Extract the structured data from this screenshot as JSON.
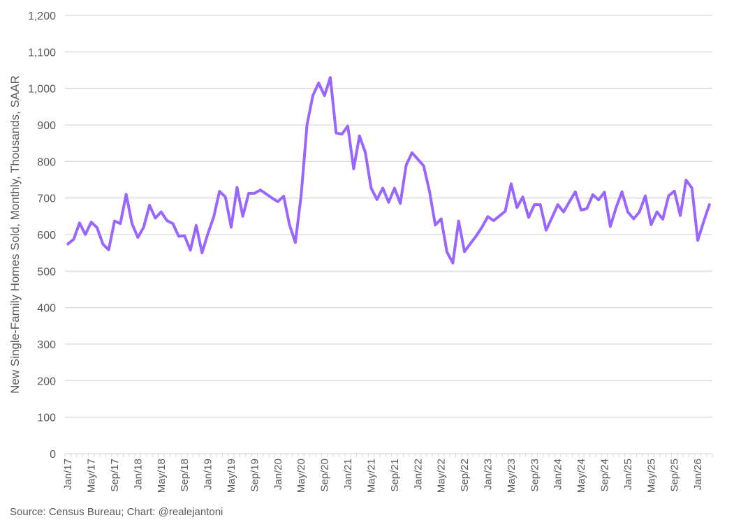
{
  "chart_data": {
    "type": "line",
    "title": "",
    "ylabel": "New Single-Family Homes Sold, Monthly, Thousands, SAAR",
    "xlabel": "",
    "ylim": [
      0,
      1200
    ],
    "grid": true,
    "legend": "none",
    "y_ticks": [
      "0",
      "100",
      "200",
      "300",
      "400",
      "500",
      "600",
      "700",
      "800",
      "900",
      "1,000",
      "1,100",
      "1,200"
    ],
    "x_tick_labels": [
      "Jan/17",
      "May/17",
      "Sep/17",
      "Jan/18",
      "May/18",
      "Sep/18",
      "Jan/19",
      "May/19",
      "Sep/19",
      "Jan/20",
      "May/20",
      "Sep/20",
      "Jan/21",
      "May/21",
      "Sep/21",
      "Jan/22",
      "May/22",
      "Sep/22",
      "Jan/23",
      "May/23",
      "Sep/23",
      "Jan/24",
      "May/24",
      "Sep/24",
      "Jan/25",
      "May/25",
      "Sep/25",
      "Jan/26"
    ],
    "x_start": "Jan/17",
    "x_end": "Mar/26",
    "series": [
      {
        "color": "#9966ff",
        "x": [
          "Jan/17",
          "Feb/17",
          "Mar/17",
          "Apr/17",
          "May/17",
          "Jun/17",
          "Jul/17",
          "Aug/17",
          "Sep/17",
          "Oct/17",
          "Nov/17",
          "Dec/17",
          "Jan/18",
          "Feb/18",
          "Mar/18",
          "Apr/18",
          "May/18",
          "Jun/18",
          "Jul/18",
          "Aug/18",
          "Sep/18",
          "Oct/18",
          "Nov/18",
          "Dec/18",
          "Jan/19",
          "Feb/19",
          "Mar/19",
          "Apr/19",
          "May/19",
          "Jun/19",
          "Jul/19",
          "Aug/19",
          "Sep/19",
          "Oct/19",
          "Nov/19",
          "Dec/19",
          "Jan/20",
          "Feb/20",
          "Mar/20",
          "Apr/20",
          "May/20",
          "Jun/20",
          "Jul/20",
          "Aug/20",
          "Sep/20",
          "Oct/20",
          "Nov/20",
          "Dec/20",
          "Jan/21",
          "Feb/21",
          "Mar/21",
          "Apr/21",
          "May/21",
          "Jun/21",
          "Jul/21",
          "Aug/21",
          "Sep/21",
          "Oct/21",
          "Nov/21",
          "Dec/21",
          "Jan/22",
          "Feb/22",
          "Mar/22",
          "Apr/22",
          "May/22",
          "Jun/22",
          "Jul/22",
          "Aug/22",
          "Sep/22",
          "Oct/22",
          "Nov/22",
          "Dec/22",
          "Jan/23",
          "Feb/23",
          "Mar/23",
          "Apr/23",
          "May/23",
          "Jun/23",
          "Jul/23",
          "Aug/23",
          "Sep/23",
          "Oct/23",
          "Nov/23",
          "Dec/23",
          "Jan/24",
          "Feb/24",
          "Mar/24",
          "Apr/24",
          "May/24",
          "Jun/24",
          "Jul/24",
          "Aug/24",
          "Sep/24",
          "Oct/24",
          "Nov/24",
          "Dec/24",
          "Jan/25",
          "Feb/25",
          "Mar/25",
          "Apr/25",
          "May/25",
          "Jun/25",
          "Jul/25",
          "Aug/25",
          "Sep/25",
          "Oct/25",
          "Nov/25",
          "Dec/25",
          "Jan/26",
          "Feb/26",
          "Mar/26"
        ],
        "values": [
          574,
          587,
          632,
          600,
          634,
          619,
          574,
          558,
          637,
          630,
          710,
          630,
          592,
          620,
          680,
          645,
          662,
          638,
          630,
          595,
          597,
          557,
          625,
          550,
          602,
          648,
          718,
          703,
          620,
          729,
          650,
          713,
          713,
          722,
          711,
          700,
          690,
          705,
          627,
          578,
          707,
          900,
          980,
          1015,
          980,
          1030,
          878,
          875,
          897,
          780,
          870,
          825,
          727,
          696,
          727,
          688,
          727,
          685,
          790,
          824,
          806,
          788,
          718,
          626,
          643,
          552,
          522,
          637,
          553,
          575,
          596,
          620,
          649,
          638,
          651,
          664,
          739,
          674,
          703,
          647,
          682,
          682,
          612,
          646,
          682,
          662,
          690,
          717,
          667,
          671,
          709,
          695,
          716,
          622,
          674,
          717,
          662,
          643,
          662,
          706,
          627,
          662,
          642,
          706,
          719,
          652,
          749,
          727,
          584,
          635,
          682
        ]
      }
    ]
  },
  "footer": {
    "source": "Source: Census Bureau; Chart: @realejantoni"
  }
}
